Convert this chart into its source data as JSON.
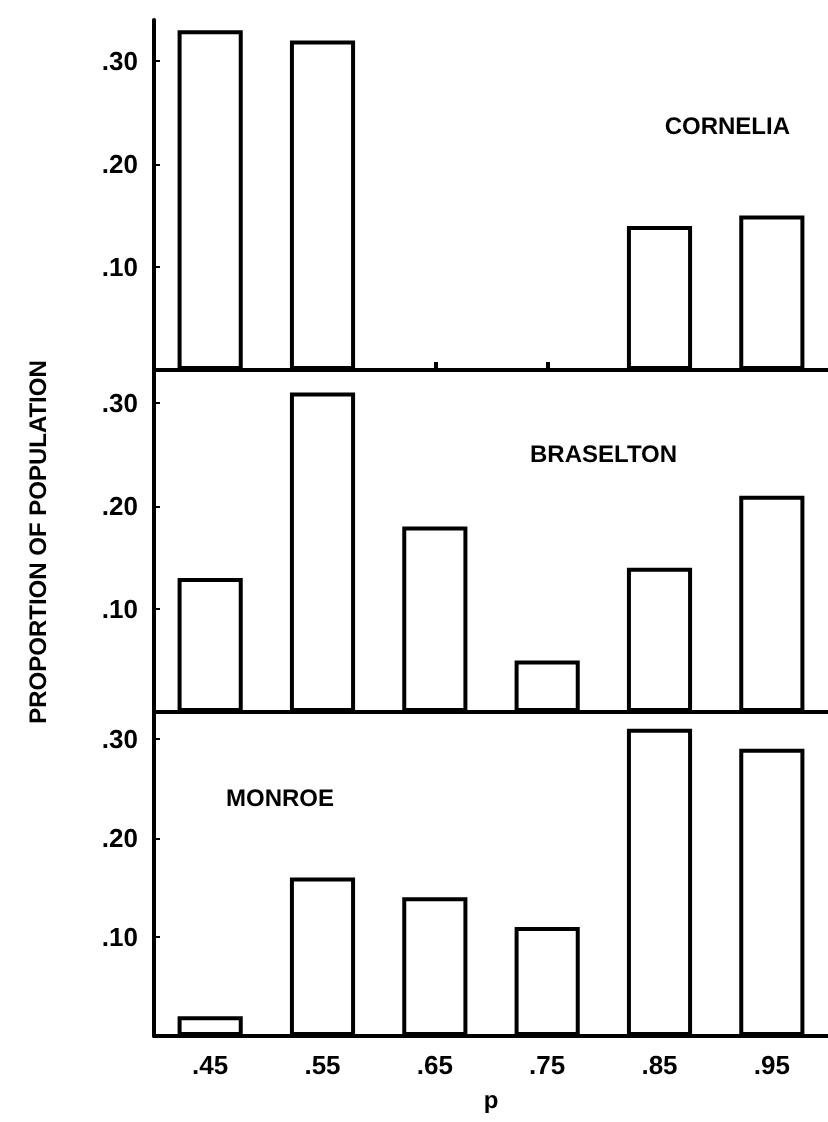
{
  "chart_data": [
    {
      "type": "bar",
      "title": "CORNELIA",
      "categories": [
        ".45",
        ".55",
        ".65",
        ".75",
        ".85",
        ".95"
      ],
      "values": [
        0.33,
        0.32,
        null,
        null,
        0.14,
        0.15
      ],
      "color": "#ffffff",
      "ylim": [
        0,
        0.34
      ],
      "yticks": [
        {
          "value": 0.1,
          "label": ".10"
        },
        {
          "value": 0.2,
          "label": ".20"
        },
        {
          "value": 0.3,
          "label": ".30"
        }
      ],
      "tick_labels": "y"
    },
    {
      "type": "bar",
      "title": "BRASELTON",
      "ylabel": "PROPORTION OF POPULATION",
      "categories": [
        ".45",
        ".55",
        ".65",
        ".75",
        ".85",
        ".95"
      ],
      "values": [
        0.13,
        0.31,
        0.18,
        0.05,
        0.14,
        0.21
      ],
      "color": "#ffffff",
      "ylim": [
        0,
        0.33
      ],
      "yticks": [
        {
          "value": 0.1,
          "label": ".10"
        },
        {
          "value": 0.2,
          "label": ".20"
        },
        {
          "value": 0.3,
          "label": ".30"
        }
      ],
      "tick_labels": "y"
    },
    {
      "type": "bar",
      "title": "MONROE",
      "xlabel": "p",
      "categories": [
        ".45",
        ".55",
        ".65",
        ".75",
        ".85",
        ".95"
      ],
      "values": [
        0.02,
        0.16,
        0.14,
        0.11,
        0.31,
        0.29
      ],
      "color": "#ffffff",
      "ylim": [
        0,
        0.325
      ],
      "yticks": [
        {
          "value": 0.1,
          "label": ".10"
        },
        {
          "value": 0.2,
          "label": ".20"
        },
        {
          "value": 0.3,
          "label": ".30"
        }
      ]
    }
  ]
}
